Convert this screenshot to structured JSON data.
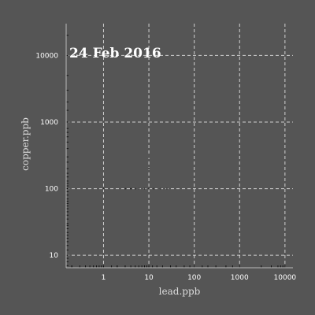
{
  "chart_data": {
    "type": "scatter",
    "title": "24 Feb 2016",
    "xlabel": "lead.ppb",
    "ylabel": "copper.ppb",
    "x_scale": "log",
    "y_scale": "log",
    "xlim": [
      0.15,
      15000
    ],
    "ylim": [
      6.5,
      30000
    ],
    "x_ticks": [
      1,
      10,
      100,
      1000,
      10000
    ],
    "x_tick_labels": [
      "1",
      "10",
      "100",
      "1000",
      "10000"
    ],
    "y_ticks": [
      10,
      100,
      1000,
      10000
    ],
    "y_tick_labels": [
      "10",
      "100",
      "1000",
      "10000"
    ],
    "grid": true,
    "background": "#555555",
    "point_color": "#111111",
    "series": [
      {
        "values": [
          {
            "x": 1,
            "y": 100
          },
          {
            "x": 3,
            "y": 100
          },
          {
            "x": 4,
            "y": 100
          },
          {
            "x": 5,
            "y": 100
          },
          {
            "x": 6,
            "y": 100
          },
          {
            "x": 8,
            "y": 100
          },
          {
            "x": 10,
            "y": 100
          },
          {
            "x": 13,
            "y": 100
          },
          {
            "x": 18,
            "y": 100
          },
          {
            "x": 25,
            "y": 100
          },
          {
            "x": 10,
            "y": 200
          },
          {
            "x": 10,
            "y": 300
          }
        ]
      }
    ],
    "x_rug": [
      0.2,
      0.2,
      0.3,
      0.4,
      0.5,
      0.6,
      0.7,
      0.8,
      0.9,
      1,
      1,
      1,
      1.5,
      2,
      2,
      3,
      3,
      4,
      5,
      6,
      7,
      8,
      9,
      10,
      10,
      12,
      15,
      20,
      30,
      40,
      60,
      80,
      100,
      150,
      200,
      300,
      500,
      700,
      1000,
      3000,
      5000,
      7000,
      8000,
      9000,
      10000
    ],
    "y_rug": [
      7,
      8,
      9,
      10,
      12,
      14,
      16,
      18,
      20,
      22,
      25,
      28,
      30,
      35,
      40,
      45,
      50,
      55,
      60,
      65,
      70,
      80,
      90,
      100,
      100,
      110,
      120,
      130,
      150,
      170,
      200,
      250,
      300,
      400,
      500,
      600,
      700,
      800,
      1000,
      1500,
      2000,
      3000,
      5000,
      10000,
      20000
    ]
  }
}
